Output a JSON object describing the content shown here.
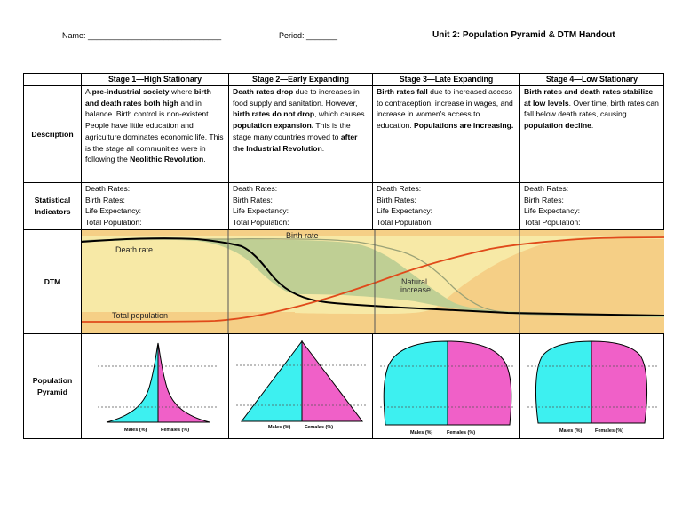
{
  "header": {
    "name_label": "Name: ______________________________",
    "period_label": "Period: _______",
    "title": "Unit 2: Population Pyramid & DTM Handout"
  },
  "columns": [
    "Stage 1—High Stationary",
    "Stage 2—Early Expanding",
    "Stage 3—Late Expanding",
    "Stage 4—Low Stationary"
  ],
  "row_labels": {
    "description": "Description",
    "statistical_1": "Statistical",
    "statistical_2": "Indicators",
    "dtm": "DTM",
    "pyramid_1": "Population",
    "pyramid_2": "Pyramid"
  },
  "descriptions": [
    [
      {
        "t": "A ",
        "b": false
      },
      {
        "t": "pre-industrial society",
        "b": true
      },
      {
        "t": " where ",
        "b": false
      },
      {
        "t": "birth and death rates both high",
        "b": true
      },
      {
        "t": " and in balance. Birth control is non-existent.  People have little education and agriculture dominates economic life.  This is the stage all communities were in following the ",
        "b": false
      },
      {
        "t": "Neolithic Revolution",
        "b": true
      },
      {
        "t": ".",
        "b": false
      }
    ],
    [
      {
        "t": "Death rates drop",
        "b": true
      },
      {
        "t": " due to increases in food supply and sanitation. However, ",
        "b": false
      },
      {
        "t": "birth rates do not drop",
        "b": true
      },
      {
        "t": ", which causes ",
        "b": false
      },
      {
        "t": "population expansion.",
        "b": true
      },
      {
        "t": "  This is the stage many countries moved to ",
        "b": false
      },
      {
        "t": "after the Industrial Revolution",
        "b": true
      },
      {
        "t": ".",
        "b": false
      }
    ],
    [
      {
        "t": "Birth rates fall",
        "b": true
      },
      {
        "t": " due to increased access to contraception, increase in wages, and increase in women's access to education.  ",
        "b": false
      },
      {
        "t": "Populations are increasing.",
        "b": true
      }
    ],
    [
      {
        "t": "Birth rates and death rates stabilize at low levels",
        "b": true
      },
      {
        "t": ". Over time, birth rates can fall below death rates, causing ",
        "b": false
      },
      {
        "t": "population decline",
        "b": true
      },
      {
        "t": ".",
        "b": false
      }
    ]
  ],
  "indicators": [
    "Death Rates:",
    "Birth Rates:",
    "Life Expectancy:",
    "Total Population:"
  ],
  "dtm": {
    "birth_rate_label": "Birth rate",
    "death_rate_label": "Death rate",
    "natural_increase_1": "Natural",
    "natural_increase_2": "increase",
    "total_population_label": "Total population",
    "colors": {
      "light": "#f7e9a6",
      "dark": "#f5cf86",
      "green": "#bfcf94",
      "total_line": "#e04a1a",
      "curve": "#000000"
    }
  },
  "pyramid": {
    "males_label": "Males (%)",
    "females_label": "Females (%)",
    "colors": {
      "males": "#3df0f0",
      "females": "#f060c8"
    }
  }
}
